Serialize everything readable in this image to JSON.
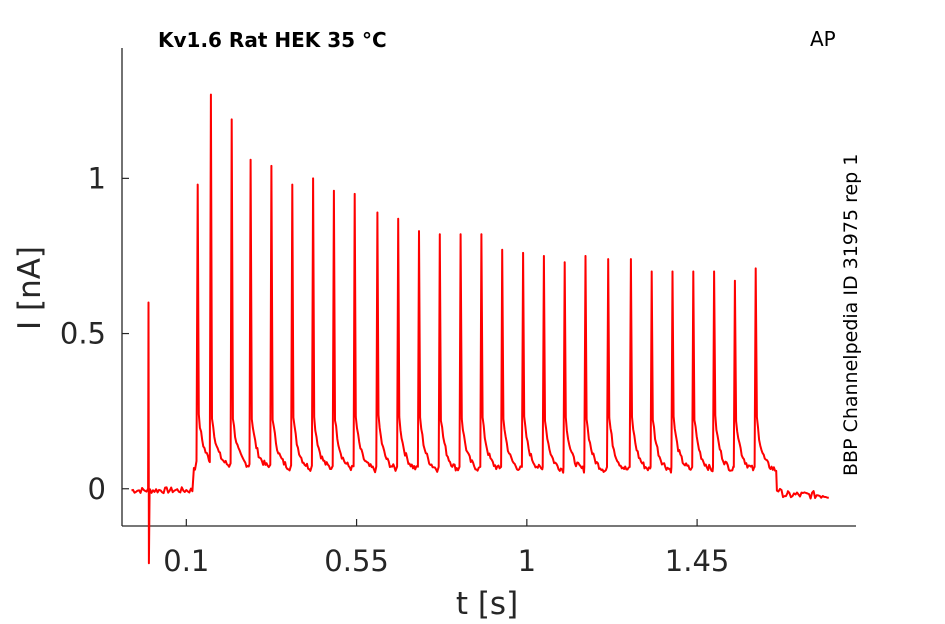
{
  "chart_data": {
    "type": "line",
    "title": "Kv1.6  Rat  HEK  35 °C",
    "corner_label": "AP",
    "side_label": "BBP Channelpedia ID 31975 rep 1",
    "xlabel": "t [s]",
    "ylabel": "I [nA]",
    "xlim": [
      -0.07,
      1.87
    ],
    "ylim": [
      -0.12,
      1.42
    ],
    "x_ticks": [
      0.1,
      0.55,
      1,
      1.45
    ],
    "x_tick_labels": [
      "0.1",
      "0.55",
      "1",
      "1.45"
    ],
    "y_ticks": [
      0,
      0.5,
      1
    ],
    "y_tick_labels": [
      "0",
      "0.5",
      "1"
    ],
    "grid": false,
    "line_color": "#ff0000",
    "series": [
      {
        "baseline_before": -0.005,
        "artifact": {
          "x": 0.0,
          "max": 0.6,
          "min": -0.24
        },
        "train_start_x": 0.12,
        "train_end_x": 1.6,
        "post_train_level": -0.02,
        "end_x": 1.8,
        "spike_peaks_x": [
          0.13,
          0.165,
          0.22,
          0.27,
          0.325,
          0.38,
          0.435,
          0.49,
          0.545,
          0.605,
          0.66,
          0.715,
          0.77,
          0.825,
          0.88,
          0.935,
          0.99,
          1.045,
          1.1,
          1.155,
          1.215,
          1.275,
          1.33,
          1.385,
          1.44,
          1.495,
          1.55,
          1.605
        ],
        "spike_peaks_y": [
          0.98,
          1.27,
          1.19,
          1.06,
          1.04,
          0.98,
          1.0,
          0.96,
          0.95,
          0.89,
          0.87,
          0.83,
          0.82,
          0.82,
          0.82,
          0.77,
          0.76,
          0.75,
          0.73,
          0.75,
          0.74,
          0.74,
          0.7,
          0.7,
          0.7,
          0.7,
          0.67,
          0.71
        ]
      }
    ]
  }
}
